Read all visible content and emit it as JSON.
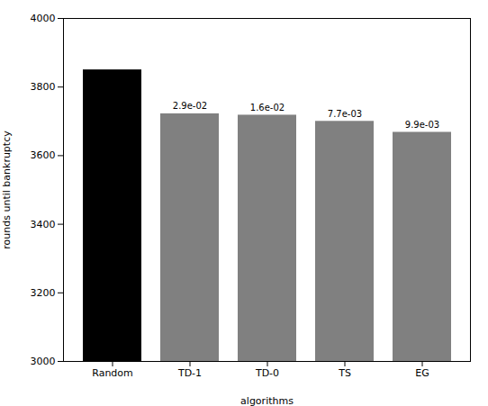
{
  "chart_data": {
    "type": "bar",
    "categories": [
      "Random",
      "TD-1",
      "TD-0",
      "TS",
      "EG"
    ],
    "values": [
      3850,
      3722,
      3718,
      3700,
      3668
    ],
    "colors": [
      "#000000",
      "#808080",
      "#808080",
      "#808080",
      "#808080"
    ],
    "annotations": [
      null,
      "2.9e-02",
      "1.6e-02",
      "7.7e-03",
      "9.9e-03"
    ],
    "xlabel": "algorithms",
    "ylabel": "rounds until bankruptcy",
    "ylim": [
      3000,
      4000
    ],
    "yticks": [
      3000,
      3200,
      3400,
      3600,
      3800,
      4000
    ]
  }
}
